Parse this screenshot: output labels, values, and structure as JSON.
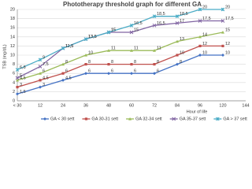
{
  "chart_data": {
    "type": "line",
    "title": "Phototherapy threshold graph for different GA",
    "x_label": "Hour of life",
    "y_label": "TSB (mg/dL)",
    "categories": [
      "< 30",
      "12",
      "24",
      "36",
      "48",
      "60",
      "72",
      "84",
      "96",
      "120",
      "144"
    ],
    "ylim": [
      0,
      20
    ],
    "yticks": [
      0,
      2,
      4,
      6,
      8,
      10,
      12,
      14,
      16,
      18,
      20
    ],
    "grid": true,
    "legend": "bottom",
    "series": [
      {
        "name": "GA < 30 sett",
        "color": "#4472c4",
        "marker": "diamond",
        "values": [
          1.5,
          3,
          4.5,
          6,
          6,
          6,
          6,
          8,
          10,
          10,
          null
        ],
        "value_labels": [
          "1,5",
          "3",
          "4,5",
          "6",
          "6",
          "6",
          "6",
          "8",
          "10",
          "10",
          null
        ]
      },
      {
        "name": "GA 30-31 sett",
        "color": "#c0504d",
        "marker": "square",
        "values": [
          3,
          4.5,
          6,
          8,
          8,
          8,
          8,
          10,
          12,
          12,
          null
        ],
        "value_labels": [
          "3",
          "4,5",
          "6",
          "8",
          "8",
          "8",
          "8",
          "10",
          "12",
          "12",
          null
        ]
      },
      {
        "name": "GA 32-34 sett",
        "color": "#9bbb59",
        "marker": "triangle",
        "values": [
          4.5,
          6,
          8,
          10,
          11,
          11,
          11,
          13,
          14,
          15,
          null
        ],
        "value_labels": [
          "4,5",
          "6",
          "8",
          "10",
          "11",
          "11",
          "11",
          "13",
          "14",
          "15",
          null
        ]
      },
      {
        "name": "GA 35-37 sett",
        "color": "#8064a2",
        "marker": "cross",
        "values": [
          5,
          7.5,
          11.5,
          13.5,
          15,
          15,
          16.5,
          17,
          17.5,
          17.5,
          null
        ],
        "value_labels": [
          "5",
          "7,5",
          "11,5",
          "13,5",
          "15",
          "15",
          "16,5",
          "17",
          "17,5",
          "17,5",
          null
        ]
      },
      {
        "name": "GA > 37 sett",
        "color": "#4bacc6",
        "marker": "star",
        "values": [
          6.8,
          9,
          11.5,
          13.5,
          15,
          16.5,
          18.5,
          18.5,
          20,
          20,
          null
        ],
        "value_labels": [
          "6,8",
          "9",
          "11,5",
          "13,5",
          "15",
          "16,5",
          "18,5",
          "18,5",
          "20",
          "20",
          null
        ]
      }
    ]
  }
}
